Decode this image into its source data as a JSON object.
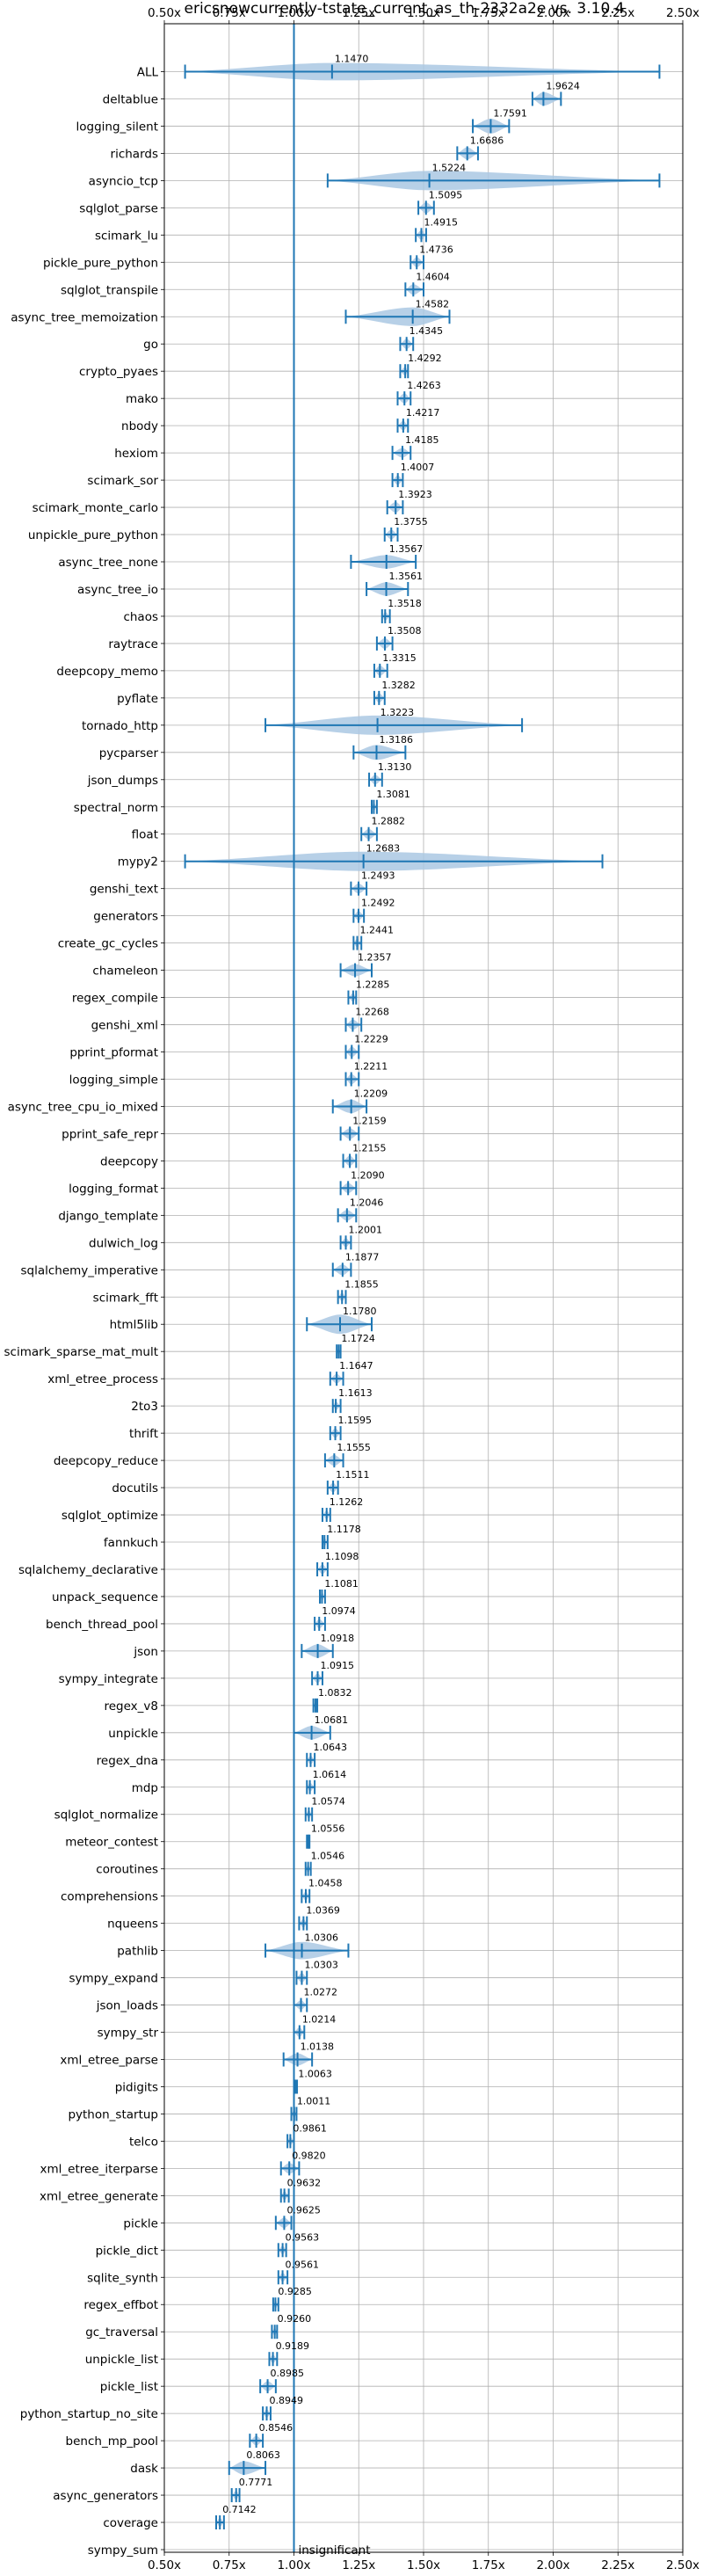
{
  "chart_data": {
    "type": "violin",
    "title": "ericsnowcurrently-tstate_current_as_th-2332a2e vs. 3.10.4",
    "xlim": [
      0.5,
      2.5
    ],
    "x_ticks": [
      0.5,
      0.75,
      1.0,
      1.25,
      1.5,
      1.75,
      2.0,
      2.25,
      2.5
    ],
    "x_tick_labels": [
      "0.50x",
      "0.75x",
      "1.00x",
      "1.25x",
      "1.50x",
      "1.75x",
      "2.00x",
      "2.25x",
      "2.50x"
    ],
    "reference_line": 1.0,
    "grid": true,
    "colors": {
      "accent": "#1f77b4",
      "violin": "#aac8e3",
      "grid": "#b0b0b0"
    },
    "note_text": "insignificant",
    "benchmarks": [
      {
        "name": "ALL",
        "value": "1.1470",
        "center": 1.147,
        "min": 0.58,
        "max": 2.41,
        "spread": 0.08
      },
      {
        "name": "deltablue",
        "value": "1.9624",
        "center": 1.9624,
        "min": 1.92,
        "max": 2.03,
        "spread": 0.05
      },
      {
        "name": "logging_silent",
        "value": "1.7591",
        "center": 1.7591,
        "min": 1.69,
        "max": 1.83,
        "spread": 0.06
      },
      {
        "name": "richards",
        "value": "1.6686",
        "center": 1.6686,
        "min": 1.63,
        "max": 1.71,
        "spread": 0.04
      },
      {
        "name": "asyncio_tcp",
        "value": "1.5224",
        "center": 1.5224,
        "min": 1.13,
        "max": 2.41,
        "spread": 0.15
      },
      {
        "name": "sqlglot_parse",
        "value": "1.5095",
        "center": 1.5095,
        "min": 1.48,
        "max": 1.54,
        "spread": 0.03
      },
      {
        "name": "scimark_lu",
        "value": "1.4915",
        "center": 1.4915,
        "min": 1.47,
        "max": 1.51,
        "spread": 0.02
      },
      {
        "name": "pickle_pure_python",
        "value": "1.4736",
        "center": 1.4736,
        "min": 1.45,
        "max": 1.5,
        "spread": 0.025
      },
      {
        "name": "sqlglot_transpile",
        "value": "1.4604",
        "center": 1.4604,
        "min": 1.43,
        "max": 1.5,
        "spread": 0.03
      },
      {
        "name": "async_tree_memoization",
        "value": "1.4582",
        "center": 1.4582,
        "min": 1.2,
        "max": 1.6,
        "spread": 0.09
      },
      {
        "name": "go",
        "value": "1.4345",
        "center": 1.4345,
        "min": 1.41,
        "max": 1.46,
        "spread": 0.025
      },
      {
        "name": "crypto_pyaes",
        "value": "1.4292",
        "center": 1.4292,
        "min": 1.41,
        "max": 1.44,
        "spread": 0.015
      },
      {
        "name": "mako",
        "value": "1.4263",
        "center": 1.4263,
        "min": 1.4,
        "max": 1.45,
        "spread": 0.025
      },
      {
        "name": "nbody",
        "value": "1.4217",
        "center": 1.4217,
        "min": 1.4,
        "max": 1.44,
        "spread": 0.02
      },
      {
        "name": "hexiom",
        "value": "1.4185",
        "center": 1.4185,
        "min": 1.38,
        "max": 1.45,
        "spread": 0.02
      },
      {
        "name": "scimark_sor",
        "value": "1.4007",
        "center": 1.4007,
        "min": 1.38,
        "max": 1.42,
        "spread": 0.02
      },
      {
        "name": "scimark_monte_carlo",
        "value": "1.3923",
        "center": 1.3923,
        "min": 1.36,
        "max": 1.42,
        "spread": 0.03
      },
      {
        "name": "unpickle_pure_python",
        "value": "1.3755",
        "center": 1.3755,
        "min": 1.35,
        "max": 1.4,
        "spread": 0.02
      },
      {
        "name": "async_tree_none",
        "value": "1.3567",
        "center": 1.3567,
        "min": 1.22,
        "max": 1.47,
        "spread": 0.05
      },
      {
        "name": "async_tree_io",
        "value": "1.3561",
        "center": 1.3561,
        "min": 1.28,
        "max": 1.44,
        "spread": 0.05
      },
      {
        "name": "chaos",
        "value": "1.3518",
        "center": 1.3518,
        "min": 1.34,
        "max": 1.37,
        "spread": 0.015
      },
      {
        "name": "raytrace",
        "value": "1.3508",
        "center": 1.3508,
        "min": 1.32,
        "max": 1.38,
        "spread": 0.03
      },
      {
        "name": "deepcopy_memo",
        "value": "1.3315",
        "center": 1.3315,
        "min": 1.31,
        "max": 1.36,
        "spread": 0.025
      },
      {
        "name": "pyflate",
        "value": "1.3282",
        "center": 1.3282,
        "min": 1.31,
        "max": 1.35,
        "spread": 0.02
      },
      {
        "name": "tornado_http",
        "value": "1.3223",
        "center": 1.3223,
        "min": 0.89,
        "max": 1.88,
        "spread": 0.12
      },
      {
        "name": "pycparser",
        "value": "1.3186",
        "center": 1.3186,
        "min": 1.23,
        "max": 1.43,
        "spread": 0.06
      },
      {
        "name": "json_dumps",
        "value": "1.3130",
        "center": 1.313,
        "min": 1.29,
        "max": 1.34,
        "spread": 0.02
      },
      {
        "name": "spectral_norm",
        "value": "1.3081",
        "center": 1.3081,
        "min": 1.3,
        "max": 1.32,
        "spread": 0.01
      },
      {
        "name": "float",
        "value": "1.2882",
        "center": 1.2882,
        "min": 1.26,
        "max": 1.32,
        "spread": 0.025
      },
      {
        "name": "mypy2",
        "value": "1.2683",
        "center": 1.2683,
        "min": 0.58,
        "max": 2.19,
        "spread": 0.2
      },
      {
        "name": "genshi_text",
        "value": "1.2493",
        "center": 1.2493,
        "min": 1.22,
        "max": 1.28,
        "spread": 0.025
      },
      {
        "name": "generators",
        "value": "1.2492",
        "center": 1.2492,
        "min": 1.23,
        "max": 1.27,
        "spread": 0.02
      },
      {
        "name": "create_gc_cycles",
        "value": "1.2441",
        "center": 1.2441,
        "min": 1.23,
        "max": 1.26,
        "spread": 0.015
      },
      {
        "name": "chameleon",
        "value": "1.2357",
        "center": 1.2357,
        "min": 1.18,
        "max": 1.3,
        "spread": 0.04
      },
      {
        "name": "regex_compile",
        "value": "1.2285",
        "center": 1.2285,
        "min": 1.21,
        "max": 1.24,
        "spread": 0.012
      },
      {
        "name": "genshi_xml",
        "value": "1.2268",
        "center": 1.2268,
        "min": 1.2,
        "max": 1.26,
        "spread": 0.025
      },
      {
        "name": "pprint_pformat",
        "value": "1.2229",
        "center": 1.2229,
        "min": 1.2,
        "max": 1.25,
        "spread": 0.025
      },
      {
        "name": "logging_simple",
        "value": "1.2211",
        "center": 1.2211,
        "min": 1.2,
        "max": 1.25,
        "spread": 0.025
      },
      {
        "name": "async_tree_cpu_io_mixed",
        "value": "1.2209",
        "center": 1.2209,
        "min": 1.15,
        "max": 1.28,
        "spread": 0.05
      },
      {
        "name": "pprint_safe_repr",
        "value": "1.2159",
        "center": 1.2159,
        "min": 1.18,
        "max": 1.25,
        "spread": 0.03
      },
      {
        "name": "deepcopy",
        "value": "1.2155",
        "center": 1.2155,
        "min": 1.19,
        "max": 1.24,
        "spread": 0.025
      },
      {
        "name": "logging_format",
        "value": "1.2090",
        "center": 1.209,
        "min": 1.18,
        "max": 1.24,
        "spread": 0.025
      },
      {
        "name": "django_template",
        "value": "1.2046",
        "center": 1.2046,
        "min": 1.17,
        "max": 1.24,
        "spread": 0.03
      },
      {
        "name": "dulwich_log",
        "value": "1.2001",
        "center": 1.2001,
        "min": 1.18,
        "max": 1.22,
        "spread": 0.015
      },
      {
        "name": "sqlalchemy_imperative",
        "value": "1.1877",
        "center": 1.1877,
        "min": 1.15,
        "max": 1.22,
        "spread": 0.03
      },
      {
        "name": "scimark_fft",
        "value": "1.1855",
        "center": 1.1855,
        "min": 1.17,
        "max": 1.2,
        "spread": 0.012
      },
      {
        "name": "html5lib",
        "value": "1.1780",
        "center": 1.178,
        "min": 1.05,
        "max": 1.3,
        "spread": 0.1
      },
      {
        "name": "scimark_sparse_mat_mult",
        "value": "1.1724",
        "center": 1.1724,
        "min": 1.165,
        "max": 1.18,
        "spread": 0.008
      },
      {
        "name": "xml_etree_process",
        "value": "1.1647",
        "center": 1.1647,
        "min": 1.14,
        "max": 1.19,
        "spread": 0.02
      },
      {
        "name": "2to3",
        "value": "1.1613",
        "center": 1.1613,
        "min": 1.15,
        "max": 1.18,
        "spread": 0.012
      },
      {
        "name": "thrift",
        "value": "1.1595",
        "center": 1.1595,
        "min": 1.14,
        "max": 1.18,
        "spread": 0.02
      },
      {
        "name": "deepcopy_reduce",
        "value": "1.1555",
        "center": 1.1555,
        "min": 1.12,
        "max": 1.19,
        "spread": 0.03
      },
      {
        "name": "docutils",
        "value": "1.1511",
        "center": 1.1511,
        "min": 1.13,
        "max": 1.17,
        "spread": 0.02
      },
      {
        "name": "sqlglot_optimize",
        "value": "1.1262",
        "center": 1.1262,
        "min": 1.11,
        "max": 1.14,
        "spread": 0.012
      },
      {
        "name": "fannkuch",
        "value": "1.1178",
        "center": 1.1178,
        "min": 1.11,
        "max": 1.13,
        "spread": 0.01
      },
      {
        "name": "sqlalchemy_declarative",
        "value": "1.1098",
        "center": 1.1098,
        "min": 1.09,
        "max": 1.13,
        "spread": 0.02
      },
      {
        "name": "unpack_sequence",
        "value": "1.1081",
        "center": 1.1081,
        "min": 1.1,
        "max": 1.12,
        "spread": 0.008
      },
      {
        "name": "bench_thread_pool",
        "value": "1.0974",
        "center": 1.0974,
        "min": 1.08,
        "max": 1.12,
        "spread": 0.02
      },
      {
        "name": "json",
        "value": "1.0918",
        "center": 1.0918,
        "min": 1.03,
        "max": 1.15,
        "spread": 0.05
      },
      {
        "name": "sympy_integrate",
        "value": "1.0915",
        "center": 1.0915,
        "min": 1.07,
        "max": 1.11,
        "spread": 0.02
      },
      {
        "name": "regex_v8",
        "value": "1.0832",
        "center": 1.0832,
        "min": 1.075,
        "max": 1.09,
        "spread": 0.008
      },
      {
        "name": "unpickle",
        "value": "1.0681",
        "center": 1.0681,
        "min": 1.0,
        "max": 1.14,
        "spread": 0.05
      },
      {
        "name": "regex_dna",
        "value": "1.0643",
        "center": 1.0643,
        "min": 1.05,
        "max": 1.08,
        "spread": 0.015
      },
      {
        "name": "mdp",
        "value": "1.0614",
        "center": 1.0614,
        "min": 1.05,
        "max": 1.08,
        "spread": 0.015
      },
      {
        "name": "sqlglot_normalize",
        "value": "1.0574",
        "center": 1.0574,
        "min": 1.045,
        "max": 1.07,
        "spread": 0.012
      },
      {
        "name": "meteor_contest",
        "value": "1.0556",
        "center": 1.0556,
        "min": 1.05,
        "max": 1.06,
        "spread": 0.006
      },
      {
        "name": "coroutines",
        "value": "1.0546",
        "center": 1.0546,
        "min": 1.045,
        "max": 1.065,
        "spread": 0.01
      },
      {
        "name": "comprehensions",
        "value": "1.0458",
        "center": 1.0458,
        "min": 1.03,
        "max": 1.06,
        "spread": 0.015
      },
      {
        "name": "nqueens",
        "value": "1.0369",
        "center": 1.0369,
        "min": 1.02,
        "max": 1.05,
        "spread": 0.015
      },
      {
        "name": "pathlib",
        "value": "1.0306",
        "center": 1.0306,
        "min": 0.89,
        "max": 1.21,
        "spread": 0.08
      },
      {
        "name": "sympy_expand",
        "value": "1.0303",
        "center": 1.0303,
        "min": 1.01,
        "max": 1.05,
        "spread": 0.02
      },
      {
        "name": "json_loads",
        "value": "1.0272",
        "center": 1.0272,
        "min": 1.0,
        "max": 1.05,
        "spread": 0.02
      },
      {
        "name": "sympy_str",
        "value": "1.0214",
        "center": 1.0214,
        "min": 1.0,
        "max": 1.04,
        "spread": 0.02
      },
      {
        "name": "xml_etree_parse",
        "value": "1.0138",
        "center": 1.0138,
        "min": 0.96,
        "max": 1.07,
        "spread": 0.04
      },
      {
        "name": "pidigits",
        "value": "1.0063",
        "center": 1.0063,
        "min": 1.0,
        "max": 1.012,
        "spread": 0.006
      },
      {
        "name": "python_startup",
        "value": "1.0011",
        "center": 1.0011,
        "min": 0.99,
        "max": 1.01,
        "spread": 0.01
      },
      {
        "name": "telco",
        "value": "0.9861",
        "center": 0.9861,
        "min": 0.975,
        "max": 1.0,
        "spread": 0.012
      },
      {
        "name": "xml_etree_iterparse",
        "value": "0.9820",
        "center": 0.982,
        "min": 0.95,
        "max": 1.02,
        "spread": 0.03
      },
      {
        "name": "xml_etree_generate",
        "value": "0.9632",
        "center": 0.9632,
        "min": 0.95,
        "max": 0.98,
        "spread": 0.015
      },
      {
        "name": "pickle",
        "value": "0.9625",
        "center": 0.9625,
        "min": 0.93,
        "max": 0.99,
        "spread": 0.025
      },
      {
        "name": "pickle_dict",
        "value": "0.9563",
        "center": 0.9563,
        "min": 0.94,
        "max": 0.97,
        "spread": 0.015
      },
      {
        "name": "sqlite_synth",
        "value": "0.9561",
        "center": 0.9561,
        "min": 0.94,
        "max": 0.975,
        "spread": 0.015
      },
      {
        "name": "regex_effbot",
        "value": "0.9285",
        "center": 0.9285,
        "min": 0.92,
        "max": 0.94,
        "spread": 0.008
      },
      {
        "name": "gc_traversal",
        "value": "0.9260",
        "center": 0.926,
        "min": 0.915,
        "max": 0.935,
        "spread": 0.01
      },
      {
        "name": "unpickle_list",
        "value": "0.9189",
        "center": 0.9189,
        "min": 0.905,
        "max": 0.935,
        "spread": 0.012
      },
      {
        "name": "pickle_list",
        "value": "0.8985",
        "center": 0.8985,
        "min": 0.87,
        "max": 0.93,
        "spread": 0.025
      },
      {
        "name": "python_startup_no_site",
        "value": "0.8949",
        "center": 0.8949,
        "min": 0.88,
        "max": 0.91,
        "spread": 0.012
      },
      {
        "name": "bench_mp_pool",
        "value": "0.8546",
        "center": 0.8546,
        "min": 0.83,
        "max": 0.88,
        "spread": 0.02
      },
      {
        "name": "dask",
        "value": "0.8063",
        "center": 0.8063,
        "min": 0.75,
        "max": 0.89,
        "spread": 0.05
      },
      {
        "name": "async_generators",
        "value": "0.7771",
        "center": 0.7771,
        "min": 0.76,
        "max": 0.79,
        "spread": 0.015
      },
      {
        "name": "coverage",
        "value": "0.7142",
        "center": 0.7142,
        "min": 0.7,
        "max": 0.73,
        "spread": 0.015
      },
      {
        "name": "sympy_sum",
        "value": "",
        "center": null,
        "min": null,
        "max": null,
        "spread": 0,
        "note": true
      }
    ]
  }
}
